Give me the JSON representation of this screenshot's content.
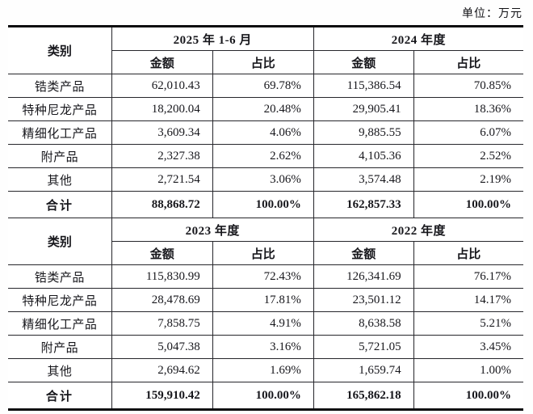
{
  "unit_label": "单位：万元",
  "table": {
    "category_header": "类别",
    "amount_header": "金额",
    "ratio_header": "占比",
    "total_label": "合计",
    "sections": [
      {
        "periods": [
          "2025 年 1-6 月",
          "2024 年度"
        ],
        "rows": [
          {
            "category": "锆类产品",
            "v": [
              "62,010.43",
              "69.78%",
              "115,386.54",
              "70.85%"
            ]
          },
          {
            "category": "特种尼龙产品",
            "v": [
              "18,200.04",
              "20.48%",
              "29,905.41",
              "18.36%"
            ]
          },
          {
            "category": "精细化工产品",
            "v": [
              "3,609.34",
              "4.06%",
              "9,885.55",
              "6.07%"
            ]
          },
          {
            "category": "附产品",
            "v": [
              "2,327.38",
              "2.62%",
              "4,105.36",
              "2.52%"
            ]
          },
          {
            "category": "其他",
            "v": [
              "2,721.54",
              "3.06%",
              "3,574.48",
              "2.19%"
            ]
          }
        ],
        "total": [
          "88,868.72",
          "100.00%",
          "162,857.33",
          "100.00%"
        ]
      },
      {
        "periods": [
          "2023 年度",
          "2022 年度"
        ],
        "rows": [
          {
            "category": "锆类产品",
            "v": [
              "115,830.99",
              "72.43%",
              "126,341.69",
              "76.17%"
            ]
          },
          {
            "category": "特种尼龙产品",
            "v": [
              "28,478.69",
              "17.81%",
              "23,501.12",
              "14.17%"
            ]
          },
          {
            "category": "精细化工产品",
            "v": [
              "7,858.75",
              "4.91%",
              "8,638.58",
              "5.21%"
            ]
          },
          {
            "category": "附产品",
            "v": [
              "5,047.38",
              "3.16%",
              "5,721.05",
              "3.45%"
            ]
          },
          {
            "category": "其他",
            "v": [
              "2,694.62",
              "1.69%",
              "1,659.74",
              "1.00%"
            ]
          }
        ],
        "total": [
          "159,910.42",
          "100.00%",
          "165,862.18",
          "100.00%"
        ]
      }
    ]
  },
  "colors": {
    "text": "#17171c",
    "border": "#26262b",
    "background": "#ffffff"
  }
}
